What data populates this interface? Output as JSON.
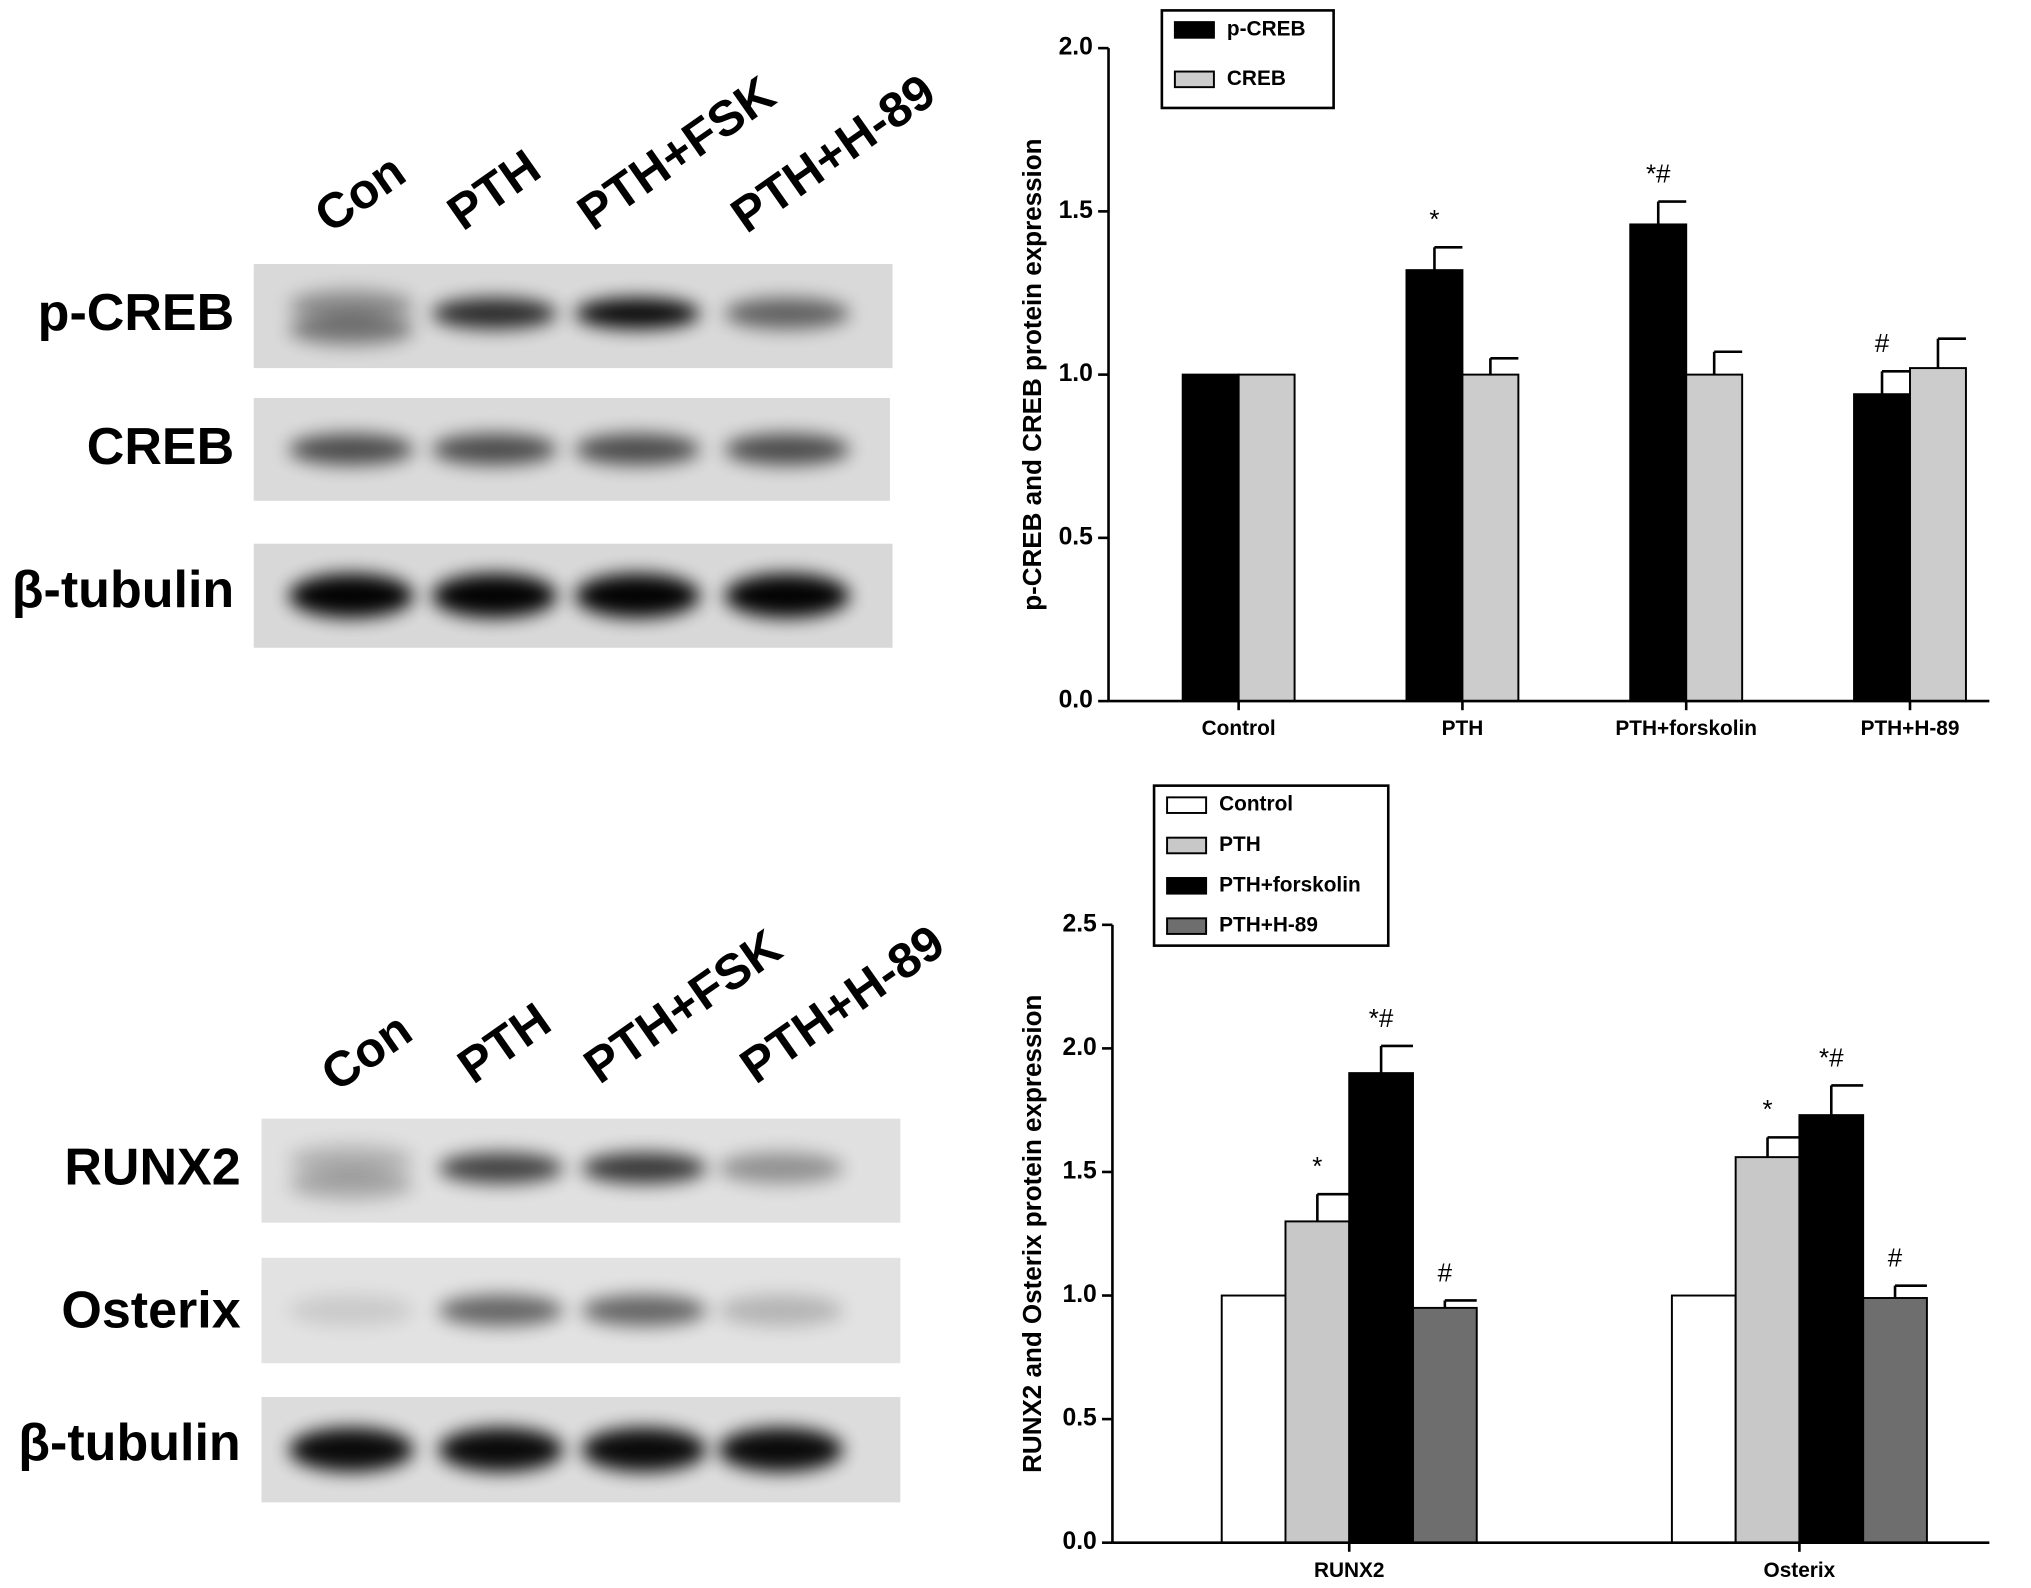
{
  "chart_data": [
    {
      "type": "bar",
      "y_label": "p-CREB and CREB protein expression",
      "categories": [
        "Control",
        "PTH",
        "PTH+forskolin",
        "PTH+H-89"
      ],
      "series": [
        {
          "name": "p-CREB",
          "color": "#000000",
          "values": [
            1.0,
            1.32,
            1.46,
            0.94
          ],
          "errors": [
            0,
            0.07,
            0.07,
            0.07
          ]
        },
        {
          "name": "CREB",
          "color": "#cccccc",
          "values": [
            1.0,
            1.0,
            1.0,
            1.02
          ],
          "errors": [
            0,
            0.05,
            0.07,
            0.09
          ]
        }
      ],
      "annotations": [
        {
          "series": 0,
          "index": 1,
          "text": "*"
        },
        {
          "series": 0,
          "index": 2,
          "text": "*#"
        },
        {
          "series": 0,
          "index": 3,
          "text": "#"
        }
      ],
      "ylim": [
        0,
        2.0
      ],
      "yticks": [
        {
          "value": 0,
          "label": "0.0"
        },
        0.5,
        {
          "value": 1,
          "label": "1.0"
        },
        1.5,
        {
          "value": 2,
          "label": "2.0"
        }
      ],
      "legend": "upper left"
    },
    {
      "type": "bar",
      "y_label": "RUNX2 and Osterix protein expression",
      "categories": [
        "RUNX2",
        "Osterix"
      ],
      "series": [
        {
          "name": "Control",
          "color": "#ffffff",
          "values": [
            1.0,
            1.0
          ],
          "errors": [
            0,
            0
          ]
        },
        {
          "name": "PTH",
          "color": "#c8c8c8",
          "values": [
            1.3,
            1.56
          ],
          "errors": [
            0.11,
            0.08
          ]
        },
        {
          "name": "PTH+forskolin",
          "color": "#000000",
          "values": [
            1.9,
            1.73
          ],
          "errors": [
            0.11,
            0.12
          ]
        },
        {
          "name": "PTH+H-89",
          "color": "#6e6e6e",
          "values": [
            0.95,
            0.99
          ],
          "errors": [
            0.03,
            0.05
          ]
        }
      ],
      "annotations": [
        {
          "series": 1,
          "index": 0,
          "text": "*"
        },
        {
          "series": 2,
          "index": 0,
          "text": "*#"
        },
        {
          "series": 3,
          "index": 0,
          "text": "#"
        },
        {
          "series": 1,
          "index": 1,
          "text": "*"
        },
        {
          "series": 2,
          "index": 1,
          "text": "*#"
        },
        {
          "series": 3,
          "index": 1,
          "text": "#"
        }
      ],
      "ylim": [
        0,
        2.5
      ],
      "yticks": [
        {
          "value": 0,
          "label": "0.0"
        },
        0.5,
        {
          "value": 1,
          "label": "1.0"
        },
        1.5,
        {
          "value": 2,
          "label": "2.0"
        },
        2.5
      ],
      "legend": "upper left"
    }
  ],
  "blots": [
    {
      "lanes": [
        "Con",
        "PTH",
        "PTH+FSK",
        "PTH+H-89"
      ],
      "rows": [
        "p-CREB",
        "CREB",
        "β-tubulin"
      ]
    },
    {
      "lanes": [
        "Con",
        "PTH",
        "PTH+FSK",
        "PTH+H-89"
      ],
      "rows": [
        "RUNX2",
        "Osterix",
        "β-tubulin"
      ]
    }
  ]
}
